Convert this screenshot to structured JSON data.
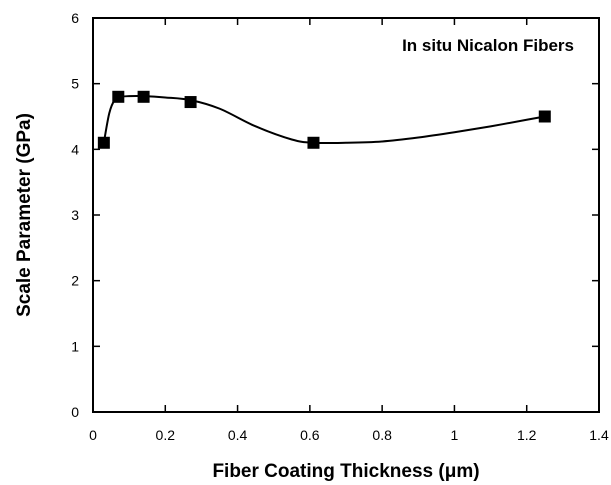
{
  "chart_data": {
    "type": "line",
    "xlabel": "Fiber Coating Thickness (μm)",
    "ylabel": "Scale Parameter (GPa)",
    "annotation": "In situ Nicalon Fibers",
    "xlim": [
      0,
      1.4
    ],
    "ylim": [
      0,
      6
    ],
    "x_ticks": [
      0,
      0.2,
      0.4,
      0.6,
      0.8,
      1,
      1.2,
      1.4
    ],
    "x_tick_labels": [
      "0",
      "0.2",
      "0.4",
      "0.6",
      "0.8",
      "1",
      "1.2",
      "1.4"
    ],
    "y_ticks": [
      0,
      1,
      2,
      3,
      4,
      5,
      6
    ],
    "y_tick_labels": [
      "0",
      "1",
      "2",
      "3",
      "4",
      "5",
      "6"
    ],
    "grid": false,
    "legend": "none",
    "marker": "filled-square",
    "series": [
      {
        "x": [
          0.03,
          0.07,
          0.14,
          0.27,
          0.61,
          1.25
        ],
        "y": [
          4.1,
          4.8,
          4.8,
          4.72,
          4.1,
          4.5
        ]
      }
    ],
    "fit_curve": {
      "x": [
        0.03,
        0.045,
        0.06,
        0.08,
        0.1,
        0.14,
        0.2,
        0.27,
        0.35,
        0.45,
        0.55,
        0.61,
        0.7,
        0.8,
        0.9,
        1.0,
        1.1,
        1.2,
        1.25
      ],
      "y": [
        4.1,
        4.55,
        4.75,
        4.8,
        4.81,
        4.81,
        4.79,
        4.75,
        4.62,
        4.35,
        4.15,
        4.1,
        4.1,
        4.12,
        4.18,
        4.26,
        4.35,
        4.45,
        4.5
      ]
    },
    "colors": {
      "line": "#000000",
      "marker": "#000000",
      "frame": "#000000",
      "background": "#ffffff"
    }
  }
}
